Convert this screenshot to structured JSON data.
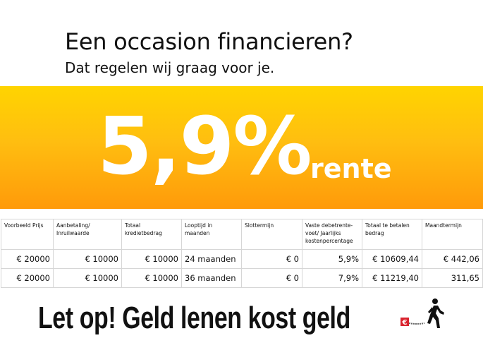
{
  "header": {
    "title": "Een occasion financieren?",
    "subtitle": "Dat regelen wij graag voor je."
  },
  "banner": {
    "rate": "5,9%",
    "label": "rente",
    "colors": {
      "top": "#ffd400",
      "bottom": "#ff9a0a"
    }
  },
  "table": {
    "headers": [
      "Voorbeeld Prijs",
      "Aanbetaling/ Inruilwaarde",
      "Totaal kredietbedrag",
      "Looptijd in maanden",
      "Slottermijn",
      "Vaste debetrente-voet/ Jaarlijks kostenpercentage",
      "Totaal te betalen bedrag",
      "Maandtermijn"
    ],
    "rows": [
      [
        "€ 20000",
        "€ 10000",
        "€ 10000",
        "24 maanden",
        "€ 0",
        "5,9%",
        "€ 10609,44",
        "€ 442,06"
      ],
      [
        "€ 20000",
        "€ 10000",
        "€ 10000",
        "36 maanden",
        "€ 0",
        "7,9%",
        "€ 11219,40",
        "311,65"
      ]
    ]
  },
  "footer": {
    "warning": "Let op! Geld lenen kost geld",
    "icon": "walking-man-with-euro-ball-and-chain-icon"
  }
}
